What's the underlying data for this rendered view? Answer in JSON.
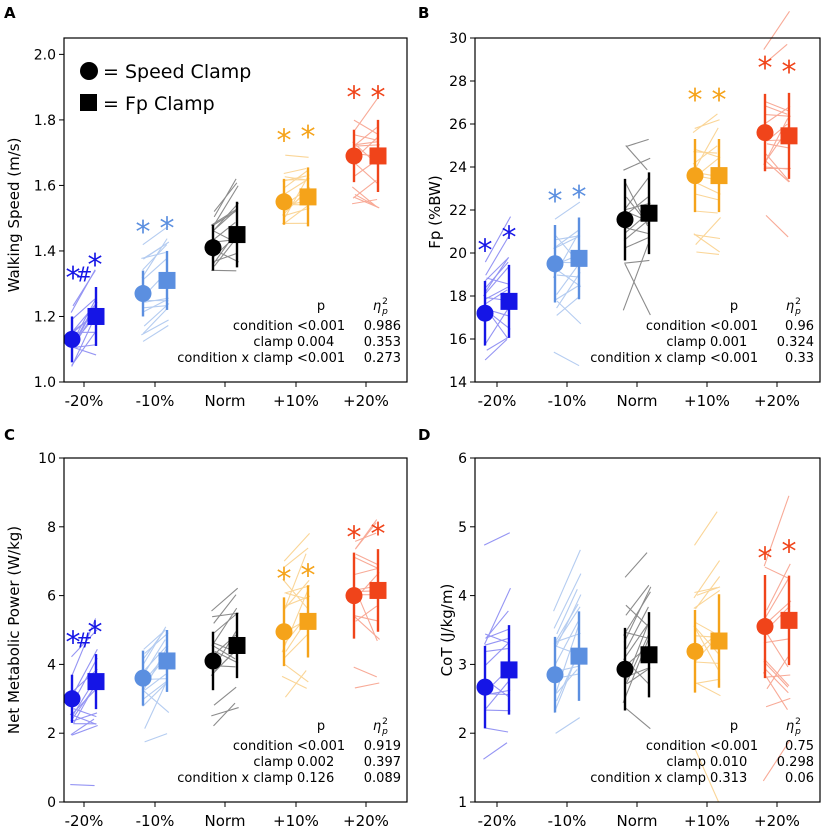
{
  "legend": {
    "speed_clamp": "= Speed Clamp",
    "fp_clamp": "= Fp Clamp"
  },
  "colors": {
    "-20%": "#1515e6",
    "-10%": "#5b8fe0",
    "Norm": "#000000",
    "+10%": "#f5a31a",
    "+20%": "#f0441a"
  },
  "stats_headers": {
    "p": "p",
    "eta": "η",
    "eta_sub": "p",
    "eta_sup": "2"
  },
  "chart_data": [
    {
      "panel": "A",
      "type": "scatter",
      "ylabel": "Walking Speed (m/s)",
      "ylim": [
        1.0,
        2.05
      ],
      "yticks": [
        1.0,
        1.2,
        1.4,
        1.6,
        1.8,
        2.0
      ],
      "ytick_labels": [
        "1.0",
        "1.2",
        "1.4",
        "1.6",
        "1.8",
        "2.0"
      ],
      "categories": [
        "-20%",
        "-10%",
        "Norm",
        "+10%",
        "+20%"
      ],
      "series": [
        {
          "name": "Speed Clamp",
          "marker": "circle",
          "means": [
            1.13,
            1.27,
            1.41,
            1.55,
            1.69
          ],
          "sd": [
            0.07,
            0.07,
            0.07,
            0.07,
            0.08
          ]
        },
        {
          "name": "Fp Clamp",
          "marker": "square",
          "means": [
            1.2,
            1.31,
            1.45,
            1.565,
            1.69
          ],
          "sd": [
            0.09,
            0.09,
            0.1,
            0.09,
            0.11
          ]
        }
      ],
      "annotations": [
        {
          "text": "*",
          "cat": 0,
          "y": 1.33,
          "offset": -0.55
        },
        {
          "text": "#",
          "cat": 0,
          "y": 1.35,
          "offset": 0.0
        },
        {
          "text": "*",
          "cat": 0,
          "y": 1.37,
          "offset": 0.55
        },
        {
          "text": "*",
          "cat": 1,
          "y": 1.47,
          "offset": -0.6
        },
        {
          "text": "*",
          "cat": 1,
          "y": 1.48,
          "offset": 0.6
        },
        {
          "text": "*",
          "cat": 3,
          "y": 1.75,
          "offset": -0.6
        },
        {
          "text": "*",
          "cat": 3,
          "y": 1.76,
          "offset": 0.6
        },
        {
          "text": "*",
          "cat": 4,
          "y": 1.88,
          "offset": -0.6
        },
        {
          "text": "*",
          "cat": 4,
          "y": 1.88,
          "offset": 0.6
        }
      ],
      "stats": [
        {
          "label": "condition",
          "p": "<0.001",
          "eta": "0.986"
        },
        {
          "label": "clamp",
          "p": "0.004",
          "eta": "0.353"
        },
        {
          "label": "condition x clamp",
          "p": "<0.001",
          "eta": "0.273"
        }
      ]
    },
    {
      "panel": "B",
      "type": "scatter",
      "ylabel": "Fp (%BW)",
      "ylim": [
        14,
        30
      ],
      "yticks": [
        14,
        16,
        18,
        20,
        22,
        24,
        26,
        28,
        30
      ],
      "ytick_labels": [
        "14",
        "16",
        "18",
        "20",
        "22",
        "24",
        "26",
        "28",
        "30"
      ],
      "categories": [
        "-20%",
        "-10%",
        "Norm",
        "+10%",
        "+20%"
      ],
      "series": [
        {
          "name": "Speed Clamp",
          "marker": "circle",
          "means": [
            17.2,
            19.5,
            21.55,
            23.6,
            25.6
          ],
          "sd": [
            1.5,
            1.8,
            1.9,
            1.7,
            1.8
          ]
        },
        {
          "name": "Fp Clamp",
          "marker": "square",
          "means": [
            17.75,
            19.75,
            21.85,
            23.6,
            25.45
          ],
          "sd": [
            1.7,
            1.9,
            1.9,
            1.7,
            2.0
          ]
        }
      ],
      "annotations": [
        {
          "text": "*",
          "cat": 0,
          "y": 20.3,
          "offset": -0.6
        },
        {
          "text": "*",
          "cat": 0,
          "y": 20.9,
          "offset": 0.6
        },
        {
          "text": "*",
          "cat": 1,
          "y": 22.6,
          "offset": -0.6
        },
        {
          "text": "*",
          "cat": 1,
          "y": 22.8,
          "offset": 0.6
        },
        {
          "text": "*",
          "cat": 3,
          "y": 27.3,
          "offset": -0.6
        },
        {
          "text": "*",
          "cat": 3,
          "y": 27.3,
          "offset": 0.6
        },
        {
          "text": "*",
          "cat": 4,
          "y": 28.8,
          "offset": -0.6
        },
        {
          "text": "*",
          "cat": 4,
          "y": 28.6,
          "offset": 0.6
        }
      ],
      "stats": [
        {
          "label": "condition",
          "p": "<0.001",
          "eta": "0.96"
        },
        {
          "label": "clamp",
          "p": "0.001",
          "eta": "0.324"
        },
        {
          "label": "condition x clamp",
          "p": "<0.001",
          "eta": "0.33"
        }
      ]
    },
    {
      "panel": "C",
      "type": "scatter",
      "ylabel": "Net Metabolic Power (W/kg)",
      "ylim": [
        0,
        10
      ],
      "yticks": [
        0,
        2,
        4,
        6,
        8,
        10
      ],
      "ytick_labels": [
        "0",
        "2",
        "4",
        "6",
        "8",
        "10"
      ],
      "categories": [
        "-20%",
        "-10%",
        "Norm",
        "+10%",
        "+20%"
      ],
      "series": [
        {
          "name": "Speed Clamp",
          "marker": "circle",
          "means": [
            3.0,
            3.6,
            4.1,
            4.95,
            6.0
          ],
          "sd": [
            0.7,
            0.8,
            0.85,
            1.0,
            1.25
          ]
        },
        {
          "name": "Fp Clamp",
          "marker": "square",
          "means": [
            3.5,
            4.1,
            4.55,
            5.25,
            6.15
          ],
          "sd": [
            0.8,
            0.9,
            0.95,
            1.05,
            1.2
          ]
        }
      ],
      "annotations": [
        {
          "text": "*",
          "cat": 0,
          "y": 4.75,
          "offset": -0.55
        },
        {
          "text": "#",
          "cat": 0,
          "y": 4.9,
          "offset": 0.0
        },
        {
          "text": "*",
          "cat": 0,
          "y": 5.05,
          "offset": 0.55
        },
        {
          "text": "*",
          "cat": 3,
          "y": 6.6,
          "offset": -0.6
        },
        {
          "text": "*",
          "cat": 3,
          "y": 6.7,
          "offset": 0.6
        },
        {
          "text": "*",
          "cat": 4,
          "y": 7.8,
          "offset": -0.6
        },
        {
          "text": "*",
          "cat": 4,
          "y": 7.9,
          "offset": 0.6
        }
      ],
      "stats": [
        {
          "label": "condition",
          "p": "<0.001",
          "eta": "0.919"
        },
        {
          "label": "clamp",
          "p": "0.002",
          "eta": "0.397"
        },
        {
          "label": "condition x clamp",
          "p": "0.126",
          "eta": "0.089"
        }
      ]
    },
    {
      "panel": "D",
      "type": "scatter",
      "ylabel": "CoT (J/kg/m)",
      "ylim": [
        1,
        6
      ],
      "yticks": [
        1,
        2,
        3,
        4,
        5,
        6
      ],
      "ytick_labels": [
        "1",
        "2",
        "3",
        "4",
        "5",
        "6"
      ],
      "categories": [
        "-20%",
        "-10%",
        "Norm",
        "+10%",
        "+20%"
      ],
      "series": [
        {
          "name": "Speed Clamp",
          "marker": "circle",
          "means": [
            2.67,
            2.85,
            2.93,
            3.19,
            3.55
          ],
          "sd": [
            0.6,
            0.55,
            0.6,
            0.6,
            0.75
          ]
        },
        {
          "name": "Fp Clamp",
          "marker": "square",
          "means": [
            2.92,
            3.12,
            3.14,
            3.34,
            3.64
          ],
          "sd": [
            0.65,
            0.65,
            0.62,
            0.68,
            0.65
          ]
        }
      ],
      "annotations": [
        {
          "text": "*",
          "cat": 4,
          "y": 4.6,
          "offset": -0.6
        },
        {
          "text": "*",
          "cat": 4,
          "y": 4.7,
          "offset": 0.6
        }
      ],
      "stats": [
        {
          "label": "condition",
          "p": "<0.001",
          "eta": "0.75"
        },
        {
          "label": "clamp",
          "p": "0.010",
          "eta": "0.298"
        },
        {
          "label": "condition x clamp",
          "p": "0.313",
          "eta": "0.06"
        }
      ]
    }
  ]
}
